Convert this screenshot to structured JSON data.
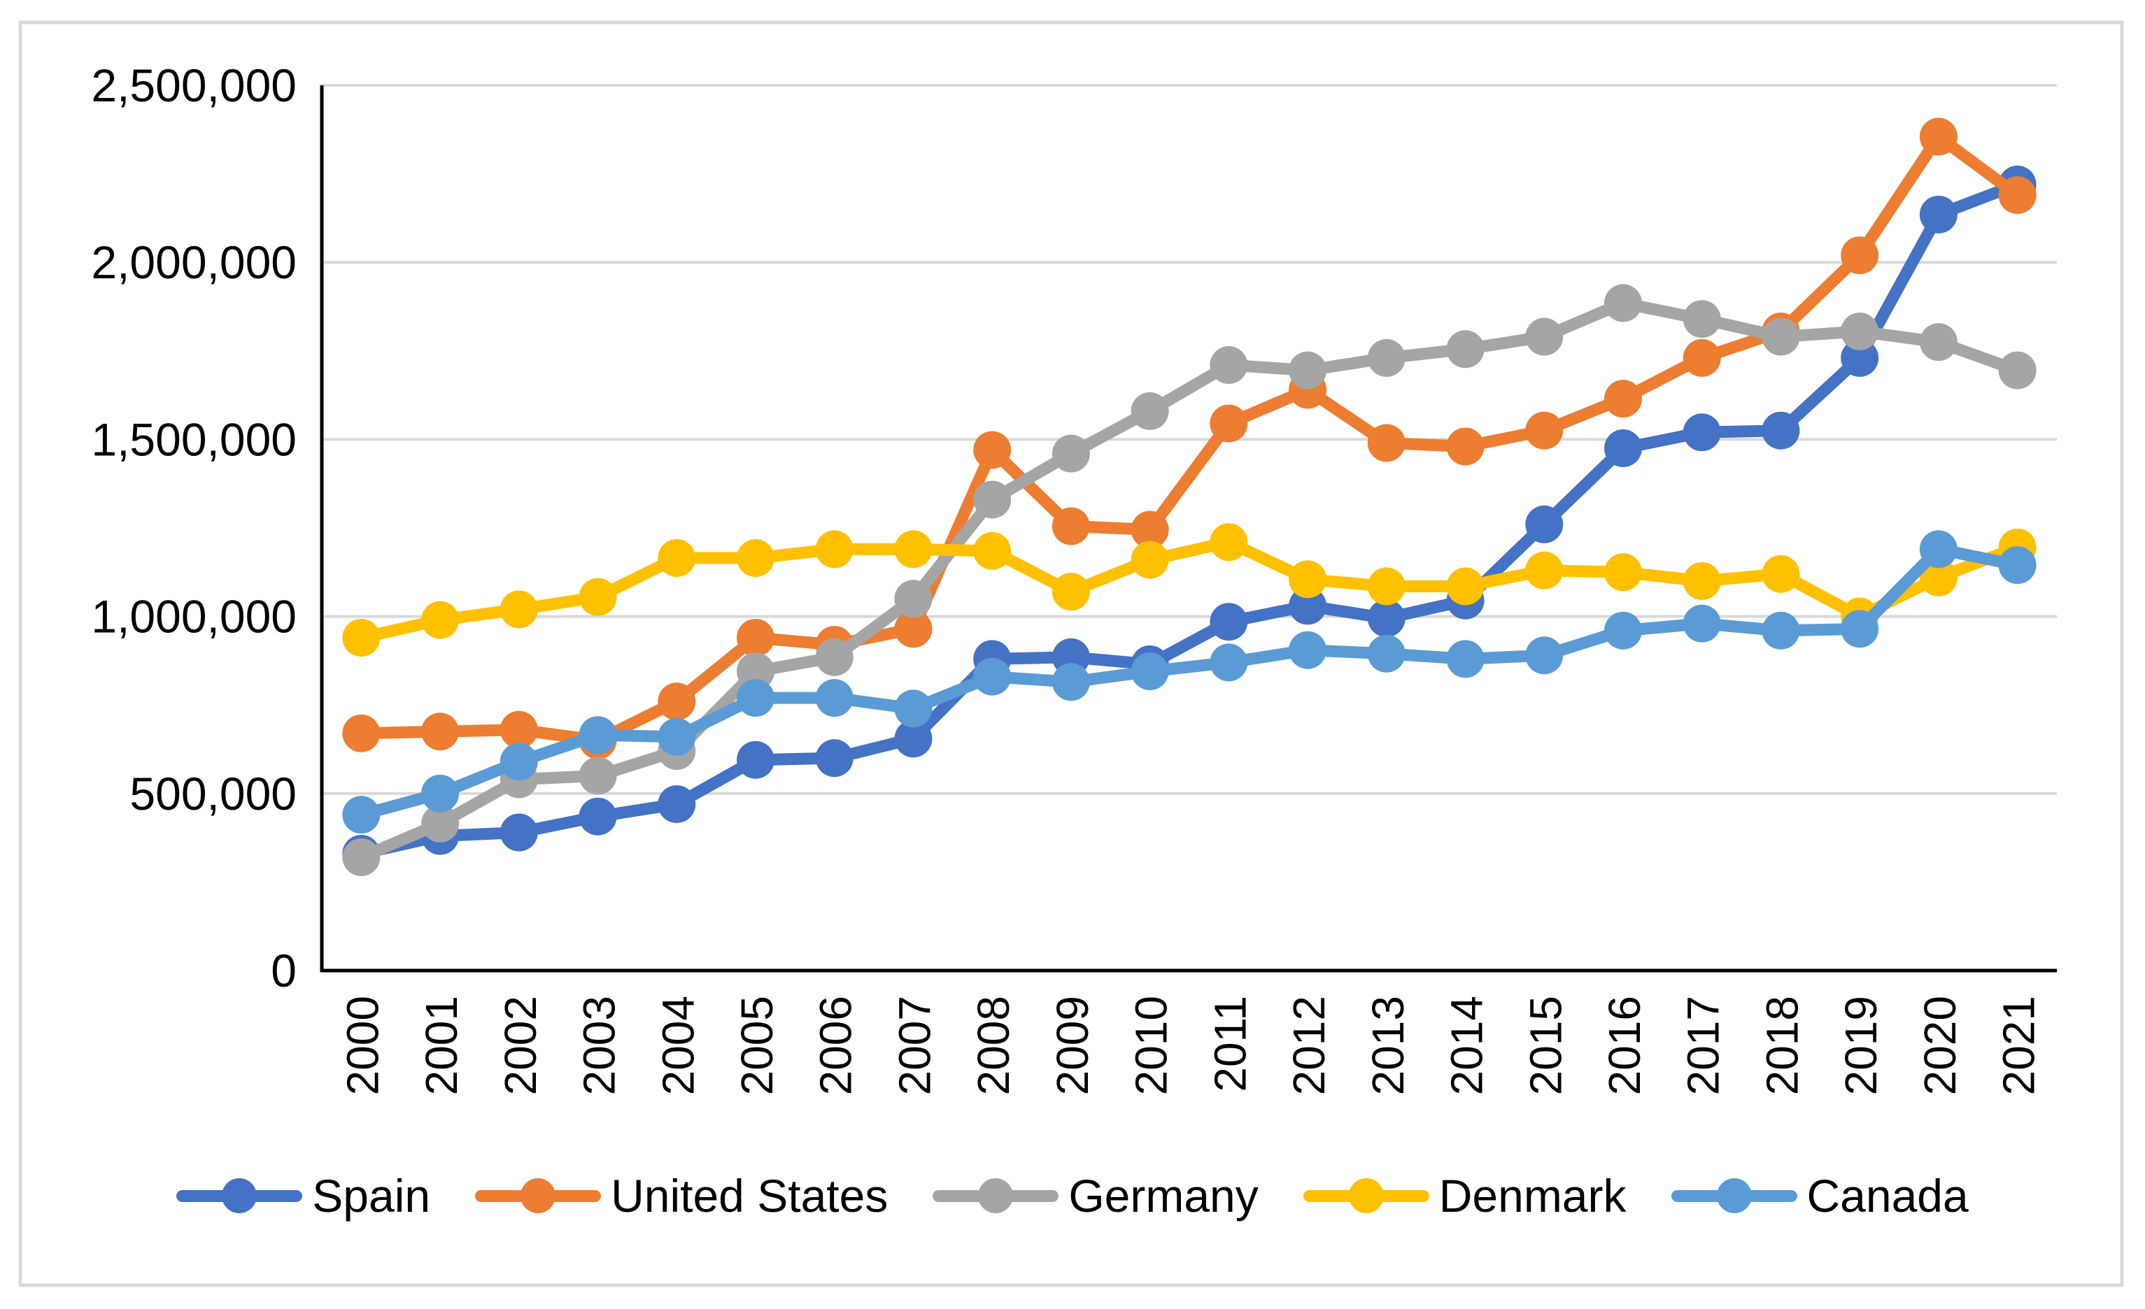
{
  "chart_data": {
    "type": "line",
    "title": "",
    "xlabel": "",
    "ylabel": "",
    "ylim": [
      0,
      2500000
    ],
    "y_step": 500000,
    "grid": "horizontal",
    "legend_position": "bottom",
    "y_tick_labels": [
      "0",
      "500,000",
      "1,000,000",
      "1,500,000",
      "2,000,000",
      "2,500,000"
    ],
    "categories": [
      "2000",
      "2001",
      "2002",
      "2003",
      "2004",
      "2005",
      "2006",
      "2007",
      "2008",
      "2009",
      "2010",
      "2011",
      "2012",
      "2013",
      "2014",
      "2015",
      "2016",
      "2017",
      "2018",
      "2019",
      "2020",
      "2021"
    ],
    "series": [
      {
        "name": "Spain",
        "color": "#4472C4",
        "values": [
          330000,
          380000,
          390000,
          435000,
          470000,
          595000,
          600000,
          655000,
          880000,
          885000,
          865000,
          985000,
          1030000,
          995000,
          1045000,
          1260000,
          1475000,
          1520000,
          1525000,
          1730000,
          2135000,
          2220000
        ]
      },
      {
        "name": "United States",
        "color": "#ED7D31",
        "values": [
          670000,
          675000,
          680000,
          650000,
          760000,
          940000,
          920000,
          965000,
          1470000,
          1255000,
          1245000,
          1545000,
          1640000,
          1490000,
          1480000,
          1525000,
          1615000,
          1730000,
          1805000,
          2020000,
          2355000,
          2190000
        ]
      },
      {
        "name": "Germany",
        "color": "#A5A5A5",
        "values": [
          320000,
          415000,
          540000,
          550000,
          620000,
          845000,
          885000,
          1050000,
          1330000,
          1460000,
          1580000,
          1710000,
          1695000,
          1730000,
          1755000,
          1790000,
          1885000,
          1840000,
          1790000,
          1805000,
          1775000,
          1695000
        ]
      },
      {
        "name": "Denmark",
        "color": "#FFC000",
        "values": [
          940000,
          990000,
          1020000,
          1055000,
          1165000,
          1165000,
          1190000,
          1190000,
          1185000,
          1070000,
          1160000,
          1210000,
          1105000,
          1085000,
          1085000,
          1130000,
          1125000,
          1100000,
          1120000,
          1000000,
          1110000,
          1195000
        ]
      },
      {
        "name": "Canada",
        "color": "#5B9BD5",
        "values": [
          440000,
          500000,
          590000,
          665000,
          660000,
          770000,
          770000,
          740000,
          830000,
          815000,
          845000,
          870000,
          905000,
          895000,
          880000,
          890000,
          960000,
          980000,
          960000,
          965000,
          1190000,
          1145000
        ]
      }
    ],
    "style": {
      "gridline_color": "#D9D9D9",
      "axis_color": "#000000",
      "border_color": "#D9D9D9",
      "background": "#FFFFFF",
      "text_color": "#000000"
    }
  }
}
